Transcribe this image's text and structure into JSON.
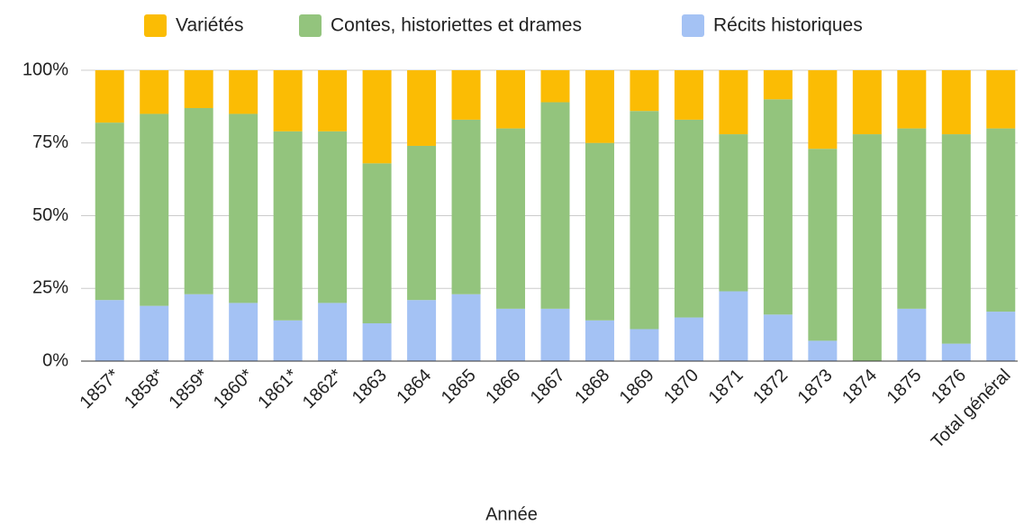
{
  "chart_data": {
    "type": "stacked_bar_100",
    "x_label": "Année",
    "categories": [
      "1857*",
      "1858*",
      "1859*",
      "1860*",
      "1861*",
      "1862*",
      "1863",
      "1864",
      "1865",
      "1866",
      "1867",
      "1868",
      "1869",
      "1870",
      "1871",
      "1872",
      "1873",
      "1874",
      "1875",
      "1876",
      "Total général"
    ],
    "series": [
      {
        "name": "Récits historiques",
        "color": "#a4c2f4",
        "values": [
          21,
          19,
          23,
          20,
          14,
          20,
          13,
          21,
          23,
          18,
          18,
          14,
          11,
          15,
          24,
          16,
          7,
          0,
          18,
          6,
          17
        ]
      },
      {
        "name": "Contes, historiettes et drames",
        "color": "#93c47d",
        "values": [
          61,
          66,
          64,
          65,
          65,
          59,
          55,
          53,
          60,
          62,
          71,
          61,
          75,
          68,
          54,
          74,
          66,
          78,
          62,
          72,
          63
        ]
      },
      {
        "name": "Variétés",
        "color": "#fbbc04",
        "values": [
          18,
          15,
          13,
          15,
          21,
          21,
          32,
          26,
          17,
          20,
          11,
          25,
          14,
          17,
          22,
          10,
          27,
          22,
          20,
          22,
          20
        ]
      }
    ],
    "legend_order": [
      2,
      1,
      0
    ],
    "ylim": [
      0,
      100
    ],
    "yticks": [
      {
        "value": 0,
        "label": "0%"
      },
      {
        "value": 25,
        "label": "25%"
      },
      {
        "value": 50,
        "label": "50%"
      },
      {
        "value": 75,
        "label": "75%"
      },
      {
        "value": 100,
        "label": "100%"
      }
    ],
    "grid": true,
    "legend": "top"
  }
}
